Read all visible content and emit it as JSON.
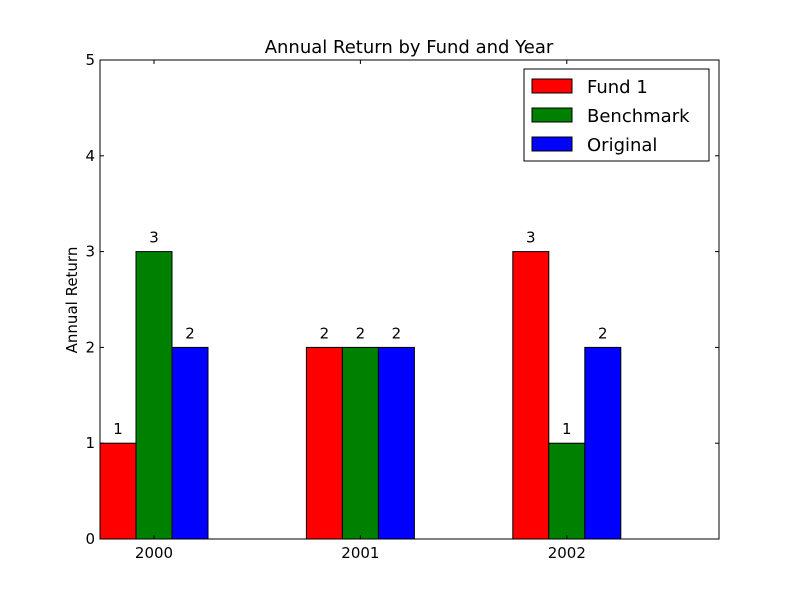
{
  "chart_data": {
    "type": "bar",
    "title": "Annual Return by Fund and Year",
    "xlabel": "",
    "ylabel": "Annual Return",
    "categories": [
      "2000",
      "2001",
      "2002"
    ],
    "series": [
      {
        "name": "Fund 1",
        "color": "#ff0000",
        "values": [
          1,
          2,
          3
        ]
      },
      {
        "name": "Benchmark",
        "color": "#008000",
        "values": [
          3,
          2,
          1
        ]
      },
      {
        "name": "Original",
        "color": "#0000ff",
        "values": [
          2,
          2,
          2
        ]
      }
    ],
    "ylim": [
      0,
      5
    ],
    "yticks": [
      "0",
      "1",
      "2",
      "3",
      "4",
      "5"
    ],
    "grid": false,
    "legend_position": "top-right"
  }
}
